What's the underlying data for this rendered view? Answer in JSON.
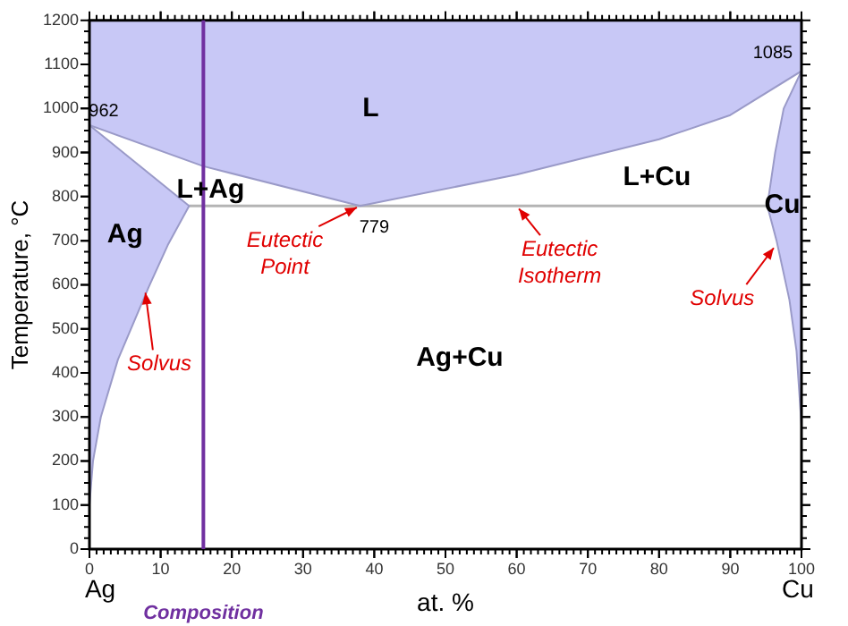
{
  "chart_data": {
    "type": "area",
    "xlabel": "at. %",
    "ylabel": "Temperature, °C",
    "xlim": [
      0,
      100
    ],
    "ylim": [
      0,
      1200
    ],
    "xticks": [
      0,
      10,
      20,
      30,
      40,
      50,
      60,
      70,
      80,
      90,
      100
    ],
    "yticks": [
      0,
      100,
      200,
      300,
      400,
      500,
      600,
      700,
      800,
      900,
      1000,
      1100,
      1200
    ],
    "grid": false,
    "legend": false,
    "series": [
      {
        "color": "#c8c8f6",
        "x": [
          0,
          0,
          16,
          38,
          60,
          80,
          90,
          100,
          100
        ],
        "values": [
          1200,
          962,
          869,
          779,
          850,
          930,
          985,
          1085,
          1200
        ]
      },
      {
        "type": "area",
        "color": "#c8c8f6",
        "x": [
          0,
          14,
          11,
          8.3,
          4,
          1.6,
          0.5,
          0,
          0
        ],
        "values": [
          962,
          779,
          690,
          594,
          430,
          300,
          200,
          100,
          962
        ]
      },
      {
        "type": "area",
        "color": "#c8c8f6",
        "x": [
          100,
          97.5,
          96.3,
          95.2,
          96.5,
          98.3,
          99.3,
          100,
          100
        ],
        "values": [
          1085,
          1000,
          900,
          779,
          700,
          566,
          450,
          280,
          1085
        ]
      },
      {
        "type": "line",
        "color": "#b4b4b4",
        "x": [
          14,
          95.2
        ],
        "values": [
          779,
          779
        ]
      }
    ],
    "ref_lines": [
      {
        "axis": "x",
        "value": 16,
        "label": "Composition",
        "color": "#7030a0"
      }
    ],
    "annotations": [
      "L",
      "L+Ag",
      "Ag",
      "L+Cu",
      "Cu",
      "Ag+Cu",
      {
        "text": "Eutectic Point",
        "x": 38,
        "y": 779
      },
      {
        "text": "Eutectic Isotherm",
        "x": 60,
        "y": 779
      },
      {
        "text": "Solvus",
        "x": 7.8,
        "y": 590
      },
      {
        "text": "Solvus",
        "x": 96.4,
        "y": 690
      },
      {
        "text": "962",
        "x": 0,
        "y": 962
      },
      {
        "text": "1085",
        "x": 100,
        "y": 1085
      },
      {
        "text": "779",
        "x": 40,
        "y": 779
      },
      "Ag",
      "Cu"
    ]
  }
}
